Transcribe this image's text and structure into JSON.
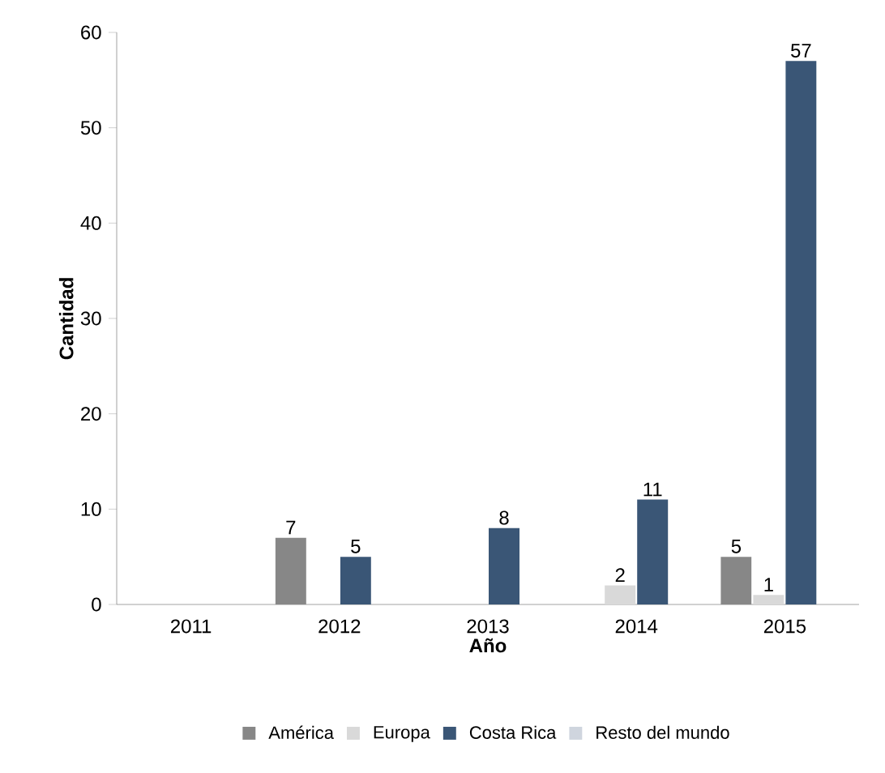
{
  "chart_data": {
    "type": "bar",
    "xlabel": "Año",
    "ylabel": "Cantidad",
    "categories": [
      "2011",
      "2012",
      "2013",
      "2014",
      "2015"
    ],
    "series": [
      {
        "name": "América",
        "color": "#878787",
        "values": [
          null,
          7,
          null,
          null,
          5
        ]
      },
      {
        "name": "Europa",
        "color": "#d9d9d9",
        "values": [
          null,
          null,
          null,
          2,
          1
        ]
      },
      {
        "name": "Costa Rica",
        "color": "#3a5676",
        "values": [
          null,
          5,
          8,
          11,
          57
        ]
      },
      {
        "name": "Resto del mundo",
        "color": "#cfd5de",
        "values": [
          null,
          null,
          null,
          null,
          null
        ]
      }
    ],
    "ylim": [
      0,
      60
    ],
    "yticks": [
      0,
      10,
      20,
      30,
      40,
      50,
      60
    ],
    "data_labels": true,
    "legend": "bottom",
    "grid": false
  }
}
